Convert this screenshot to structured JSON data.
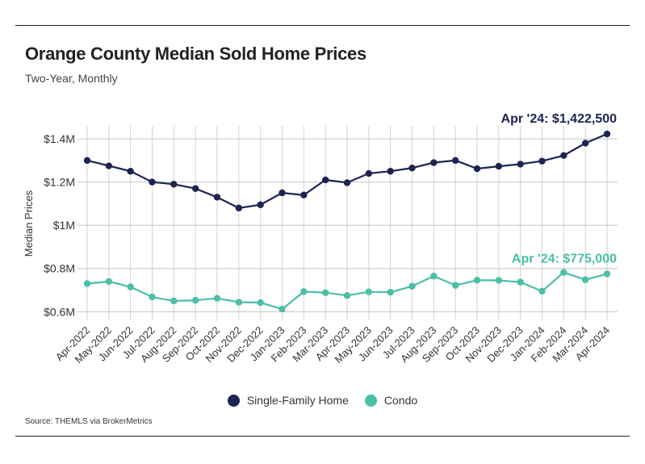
{
  "title": "Orange County Median Sold Home Prices",
  "subtitle": "Two-Year, Monthly",
  "source": "Source:  THEMLS via BrokerMetrics",
  "chart_data": {
    "type": "line",
    "title": "Orange County Median Sold Home Prices",
    "subtitle": "Two-Year, Monthly",
    "xlabel": "",
    "ylabel": "Median Prices",
    "ylim": [
      560000,
      1460000
    ],
    "yticks": [
      {
        "value": 600000,
        "label": "$0.6M"
      },
      {
        "value": 800000,
        "label": "$0.8M"
      },
      {
        "value": 1000000,
        "label": "$1M"
      },
      {
        "value": 1200000,
        "label": "$1.2M"
      },
      {
        "value": 1400000,
        "label": "$1.4M"
      }
    ],
    "grid": true,
    "legend_position": "bottom-center",
    "categories": [
      "Apr-2022",
      "May-2022",
      "Jun-2022",
      "Jul-2022",
      "Aug-2022",
      "Sep-2022",
      "Oct-2022",
      "Nov-2022",
      "Dec-2022",
      "Jan-2023",
      "Feb-2023",
      "Mar-2023",
      "Apr-2023",
      "May-2023",
      "Jun-2023",
      "Jul-2023",
      "Aug-2023",
      "Sep-2023",
      "Oct-2023",
      "Nov-2023",
      "Dec-2023",
      "Jan-2024",
      "Feb-2024",
      "Mar-2024",
      "Apr-2024"
    ],
    "series": [
      {
        "name": "Single-Family Home",
        "color": "#1c2452",
        "values": [
          1300000,
          1275000,
          1250000,
          1200000,
          1190000,
          1170000,
          1130000,
          1080000,
          1095000,
          1150000,
          1140000,
          1210000,
          1197000,
          1240000,
          1250000,
          1265000,
          1290000,
          1300000,
          1262000,
          1273000,
          1283000,
          1297000,
          1323000,
          1380000,
          1422500
        ],
        "end_label": "Apr '24: $1,422,500"
      },
      {
        "name": "Condo",
        "color": "#4bbfa7",
        "values": [
          730000,
          740000,
          715000,
          668000,
          650000,
          653000,
          662000,
          644000,
          642000,
          612000,
          693000,
          688000,
          675000,
          692000,
          690000,
          718000,
          765000,
          722000,
          746000,
          745000,
          737000,
          695000,
          782000,
          748000,
          775000
        ],
        "end_label": "Apr '24: $775,000"
      }
    ]
  }
}
